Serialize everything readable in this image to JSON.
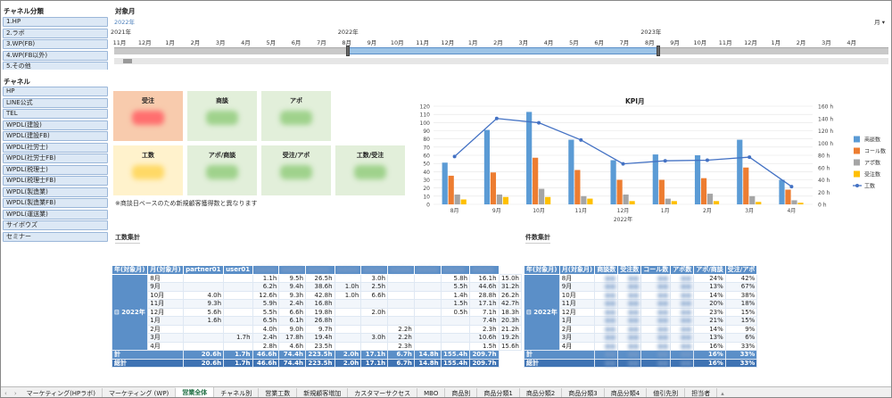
{
  "slicer_channel_group": {
    "title": "チャネル分類",
    "items": [
      "1.HP",
      "2.ラボ",
      "3.WP(FB)",
      "4.WP(FB以外)",
      "5.その他"
    ]
  },
  "slicer_channel": {
    "title": "チャネル",
    "items": [
      "HP",
      "LINE公式",
      "TEL",
      "WPDL(建設)",
      "WPDL(建設FB)",
      "WPDL(社労士)",
      "WPDL(社労士FB)",
      "WPDL(税理士)",
      "WPDL(税理士FB)",
      "WPDL(製造業)",
      "WPDL(製造業FB)",
      "WPDL(運送業)",
      "サイボウズ",
      "セミナー"
    ]
  },
  "timeline": {
    "title": "対象月",
    "selection": "2022年",
    "unit": "月 ▾",
    "years": [
      "2021年",
      "2022年",
      "2023年"
    ],
    "months": [
      "11月",
      "12月",
      "1月",
      "2月",
      "3月",
      "4月",
      "5月",
      "6月",
      "7月",
      "8月",
      "9月",
      "10月",
      "11月",
      "12月",
      "1月",
      "2月",
      "3月",
      "4月",
      "5月",
      "6月",
      "7月",
      "8月",
      "9月",
      "10月",
      "11月",
      "12月",
      "1月",
      "2月",
      "3月",
      "4月"
    ]
  },
  "kpi_cards": [
    {
      "label": "受注",
      "color": "#f8cbad",
      "blur": "#ff6f6f"
    },
    {
      "label": "商談",
      "color": "#e2efda",
      "blur": "#9fd28c"
    },
    {
      "label": "アポ",
      "color": "#e2efda",
      "blur": "#9fd28c"
    },
    {
      "label": "工数",
      "color": "#fff2cc",
      "blur": "#ffd966"
    },
    {
      "label": "アポ/商談",
      "color": "#e2efda",
      "blur": "#9fd28c"
    },
    {
      "label": "受注/アポ",
      "color": "#e2efda",
      "blur": "#9fd28c"
    },
    {
      "label": "工数/受注",
      "color": "#e2efda",
      "blur": "#9fd28c"
    }
  ],
  "note": "※商談日ベースのため新規顧客獲得数と異なります",
  "section_kosu": "工数集計",
  "section_kensu": "件数集計",
  "chart_data": {
    "type": "bar",
    "title": "KPI月",
    "categories": [
      "8月",
      "9月",
      "10月",
      "11月",
      "12月",
      "1月",
      "2月",
      "3月",
      "4月"
    ],
    "xlabel": "2022年",
    "ylim": [
      0,
      120
    ],
    "y_ticks": [
      "0",
      "10",
      "20",
      "30",
      "40",
      "50",
      "60",
      "70",
      "80",
      "90",
      "100",
      "110",
      "120"
    ],
    "y2lim": [
      0,
      160
    ],
    "y2_ticks": [
      "0 h",
      "20 h",
      "40 h",
      "60 h",
      "80 h",
      "100 h",
      "120 h",
      "140 h",
      "160 h"
    ],
    "series": [
      {
        "name": "商談数",
        "color": "#5b9bd5",
        "values": [
          51,
          91,
          113,
          79,
          54,
          61,
          60,
          79,
          30
        ]
      },
      {
        "name": "コール数",
        "color": "#ed7d31",
        "values": [
          35,
          39,
          57,
          42,
          30,
          30,
          32,
          45,
          18
        ]
      },
      {
        "name": "アポ数",
        "color": "#a5a5a5",
        "values": [
          12,
          12,
          19,
          10,
          12,
          7,
          13,
          10,
          5
        ]
      },
      {
        "name": "受注数",
        "color": "#ffc000",
        "values": [
          6,
          9,
          9,
          7,
          4,
          4,
          4,
          3,
          2
        ]
      },
      {
        "name": "工数",
        "color": "#4472c4",
        "axis": "right",
        "values": [
          78,
          140,
          133,
          105,
          66,
          71,
          72,
          77,
          29
        ]
      }
    ],
    "legend": "right"
  },
  "kosu_table": {
    "headers": [
      "年(対象月)",
      "月(対象月)",
      "partner01",
      "user01",
      "",
      "",
      "",
      "",
      "",
      "",
      "",
      "",
      ""
    ],
    "year_label": "2022年",
    "rows": [
      [
        "8月",
        "",
        "",
        "1.1h",
        "9.5h",
        "26.5h",
        "",
        "3.0h",
        "",
        "",
        "5.8h",
        "16.1h",
        "15.0h"
      ],
      [
        "9月",
        "",
        "",
        "6.2h",
        "9.4h",
        "38.6h",
        "1.0h",
        "2.5h",
        "",
        "",
        "5.5h",
        "44.6h",
        "31.2h"
      ],
      [
        "10月",
        "4.0h",
        "",
        "12.6h",
        "9.3h",
        "42.8h",
        "1.0h",
        "6.6h",
        "",
        "",
        "1.4h",
        "28.8h",
        "26.2h"
      ],
      [
        "11月",
        "9.3h",
        "",
        "5.9h",
        "2.4h",
        "16.8h",
        "",
        "",
        "",
        "",
        "1.5h",
        "17.1h",
        "42.7h"
      ],
      [
        "12月",
        "5.6h",
        "",
        "5.5h",
        "6.6h",
        "19.8h",
        "",
        "2.0h",
        "",
        "",
        "0.5h",
        "7.1h",
        "18.3h"
      ],
      [
        "1月",
        "1.6h",
        "",
        "6.5h",
        "6.1h",
        "26.8h",
        "",
        "",
        "",
        "",
        "",
        "7.4h",
        "20.3h"
      ],
      [
        "2月",
        "",
        "",
        "4.0h",
        "9.0h",
        "9.7h",
        "",
        "",
        "2.2h",
        "",
        "",
        "2.3h",
        "21.2h"
      ],
      [
        "3月",
        "",
        "1.7h",
        "2.4h",
        "17.8h",
        "19.4h",
        "",
        "3.0h",
        "2.2h",
        "",
        "",
        "10.6h",
        "19.2h"
      ],
      [
        "4月",
        "",
        "",
        "2.8h",
        "4.6h",
        "23.5h",
        "",
        "",
        "2.3h",
        "",
        "",
        "1.5h",
        "15.6h"
      ]
    ],
    "total_label": "計",
    "total": [
      "",
      "20.6h",
      "1.7h",
      "46.6h",
      "74.4h",
      "223.5h",
      "2.0h",
      "17.1h",
      "6.7h",
      "14.8h",
      "155.4h",
      "209.7h"
    ],
    "grand_label": "総計",
    "grand": [
      "",
      "20.6h",
      "1.7h",
      "46.6h",
      "74.4h",
      "223.5h",
      "2.0h",
      "17.1h",
      "6.7h",
      "14.8h",
      "155.4h",
      "209.7h"
    ]
  },
  "kensu_table": {
    "headers": [
      "年(対象月)",
      "月(対象月)",
      "商談数",
      "受注数",
      "コール数",
      "アポ数",
      "アポ/商談",
      "受注/アポ"
    ],
    "year_label": "2022年",
    "rows": [
      [
        "8月",
        "24%",
        "42%"
      ],
      [
        "9月",
        "13%",
        "67%"
      ],
      [
        "10月",
        "14%",
        "38%"
      ],
      [
        "11月",
        "20%",
        "18%"
      ],
      [
        "12月",
        "23%",
        "15%"
      ],
      [
        "1月",
        "21%",
        "15%"
      ],
      [
        "2月",
        "14%",
        "9%"
      ],
      [
        "3月",
        "13%",
        "6%"
      ],
      [
        "4月",
        "16%",
        "33%"
      ]
    ],
    "total_label": "計",
    "total": [
      "16%",
      "33%"
    ],
    "grand_label": "総計",
    "grand": [
      "16%",
      "33%"
    ]
  },
  "sheet_tabs": [
    "マーケティング(HPラボ)",
    "マーケティング (WP)",
    "営業全体",
    "チャネル別",
    "営業工数",
    "新規顧客増加",
    "カスタマーサクセス",
    "MBO",
    "商品別",
    "商品分類1",
    "商品分類2",
    "商品分類3",
    "商品分類4",
    "値引先別",
    "担当者"
  ],
  "active_tab": 2
}
